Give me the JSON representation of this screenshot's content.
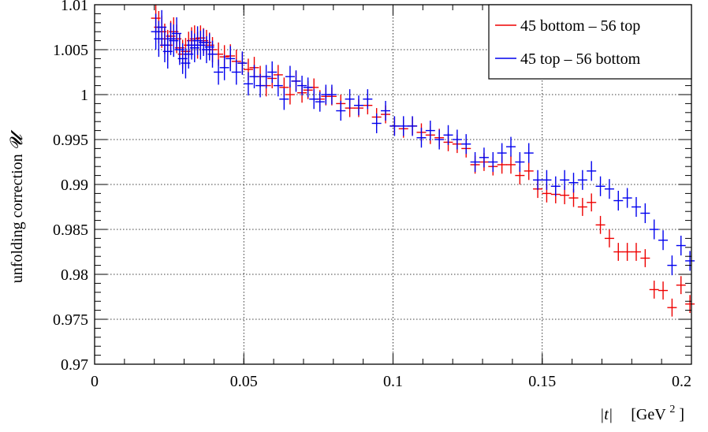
{
  "chart_data": {
    "type": "scatter",
    "xlabel_var": "|t|",
    "xlabel_unit": "[GeV",
    "xlabel_unit_sup": "2",
    "xlabel_unit_close": "]",
    "ylabel": "unfolding correction",
    "ylabel_symbol": "𝓤",
    "xlim": [
      0,
      0.2
    ],
    "ylim": [
      0.97,
      1.01
    ],
    "xticks": [
      0,
      0.05,
      0.1,
      0.15,
      0.2
    ],
    "xtick_labels": [
      "0",
      "0.05",
      "0.1",
      "0.15",
      "0.2"
    ],
    "yticks": [
      0.97,
      0.975,
      0.98,
      0.985,
      0.99,
      0.995,
      1.0,
      1.005,
      1.01
    ],
    "ytick_labels": [
      "0.97",
      "0.975",
      "0.98",
      "0.985",
      "0.99",
      "0.995",
      "1",
      "1.005",
      "1.01"
    ],
    "grid": true,
    "legend_position": "top-right",
    "series": [
      {
        "name": "45 bottom – 56 top",
        "color": "#ee0000",
        "points": [
          [
            0.0205,
            1.0085,
            0.0018
          ],
          [
            0.0215,
            1.0075,
            0.0018
          ],
          [
            0.0225,
            1.007,
            0.0018
          ],
          [
            0.0235,
            1.0062,
            0.0017
          ],
          [
            0.0245,
            1.0055,
            0.0017
          ],
          [
            0.0255,
            1.0065,
            0.0017
          ],
          [
            0.0265,
            1.007,
            0.0016
          ],
          [
            0.0275,
            1.0062,
            0.0016
          ],
          [
            0.0285,
            1.0052,
            0.0016
          ],
          [
            0.0295,
            1.0045,
            0.0016
          ],
          [
            0.0305,
            1.0048,
            0.0015
          ],
          [
            0.0315,
            1.0055,
            0.0015
          ],
          [
            0.0325,
            1.006,
            0.0015
          ],
          [
            0.0335,
            1.0062,
            0.0015
          ],
          [
            0.0345,
            1.0055,
            0.0015
          ],
          [
            0.0355,
            1.0063,
            0.0014
          ],
          [
            0.0365,
            1.006,
            0.0014
          ],
          [
            0.0375,
            1.0058,
            0.0014
          ],
          [
            0.0385,
            1.0055,
            0.0014
          ],
          [
            0.0395,
            1.005,
            0.0014
          ],
          [
            0.0415,
            1.0045,
            0.0013
          ],
          [
            0.0435,
            1.0042,
            0.0013
          ],
          [
            0.0455,
            1.0043,
            0.0013
          ],
          [
            0.0475,
            1.0037,
            0.0013
          ],
          [
            0.0495,
            1.0035,
            0.0012
          ],
          [
            0.0515,
            1.0028,
            0.0012
          ],
          [
            0.0535,
            1.003,
            0.0012
          ],
          [
            0.0555,
            1.002,
            0.0012
          ],
          [
            0.0575,
            1.001,
            0.0012
          ],
          [
            0.0595,
            1.0018,
            0.0011
          ],
          [
            0.0615,
            1.0022,
            0.0011
          ],
          [
            0.0635,
            1.0008,
            0.0011
          ],
          [
            0.0655,
            1.0,
            0.0011
          ],
          [
            0.0675,
            1.0015,
            0.0011
          ],
          [
            0.0695,
            1.0002,
            0.0011
          ],
          [
            0.0715,
            1.0005,
            0.001
          ],
          [
            0.0735,
            1.0008,
            0.001
          ],
          [
            0.0755,
            0.9995,
            0.001
          ],
          [
            0.0775,
            0.9998,
            0.001
          ],
          [
            0.0795,
            0.9998,
            0.001
          ],
          [
            0.0825,
            0.999,
            0.001
          ],
          [
            0.0855,
            0.9985,
            0.001
          ],
          [
            0.0885,
            0.9985,
            0.001
          ],
          [
            0.0915,
            0.9988,
            0.001
          ],
          [
            0.0945,
            0.9975,
            0.001
          ],
          [
            0.0975,
            0.9978,
            0.001
          ],
          [
            0.1005,
            0.9965,
            0.001
          ],
          [
            0.1035,
            0.9962,
            0.001
          ],
          [
            0.1065,
            0.9965,
            0.001
          ],
          [
            0.1095,
            0.9958,
            0.001
          ],
          [
            0.1125,
            0.9955,
            0.001
          ],
          [
            0.1155,
            0.9952,
            0.001
          ],
          [
            0.1185,
            0.9947,
            0.001
          ],
          [
            0.1215,
            0.9945,
            0.001
          ],
          [
            0.1245,
            0.994,
            0.001
          ],
          [
            0.1275,
            0.9922,
            0.001
          ],
          [
            0.1305,
            0.9925,
            0.001
          ],
          [
            0.1335,
            0.992,
            0.001
          ],
          [
            0.1365,
            0.9922,
            0.001
          ],
          [
            0.1395,
            0.9922,
            0.001
          ],
          [
            0.1425,
            0.991,
            0.001
          ],
          [
            0.1455,
            0.9915,
            0.001
          ],
          [
            0.1485,
            0.9895,
            0.001
          ],
          [
            0.1515,
            0.989,
            0.001
          ],
          [
            0.1545,
            0.9889,
            0.001
          ],
          [
            0.1575,
            0.9888,
            0.001
          ],
          [
            0.1605,
            0.9885,
            0.001
          ],
          [
            0.1635,
            0.9875,
            0.001
          ],
          [
            0.1665,
            0.988,
            0.001
          ],
          [
            0.1695,
            0.9855,
            0.001
          ],
          [
            0.1725,
            0.984,
            0.001
          ],
          [
            0.1755,
            0.9825,
            0.001
          ],
          [
            0.1785,
            0.9825,
            0.001
          ],
          [
            0.1815,
            0.9825,
            0.001
          ],
          [
            0.1845,
            0.9818,
            0.001
          ],
          [
            0.1875,
            0.9783,
            0.001
          ],
          [
            0.1905,
            0.9782,
            0.001
          ],
          [
            0.1935,
            0.9763,
            0.001
          ],
          [
            0.1965,
            0.9788,
            0.001
          ],
          [
            0.1995,
            0.9767,
            0.001
          ]
        ]
      },
      {
        "name": "45 top – 56 bottom",
        "color": "#0000ee",
        "points": [
          [
            0.0205,
            1.007,
            0.002
          ],
          [
            0.0215,
            1.0062,
            0.002
          ],
          [
            0.0225,
            1.0075,
            0.0019
          ],
          [
            0.0235,
            1.0055,
            0.0019
          ],
          [
            0.0245,
            1.0048,
            0.0019
          ],
          [
            0.0255,
            1.0062,
            0.0018
          ],
          [
            0.0265,
            1.006,
            0.0018
          ],
          [
            0.0275,
            1.0068,
            0.0018
          ],
          [
            0.0285,
            1.005,
            0.0017
          ],
          [
            0.0295,
            1.004,
            0.0017
          ],
          [
            0.0305,
            1.0035,
            0.0017
          ],
          [
            0.0315,
            1.0045,
            0.0016
          ],
          [
            0.0325,
            1.0055,
            0.0016
          ],
          [
            0.0335,
            1.0052,
            0.0016
          ],
          [
            0.0345,
            1.006,
            0.0016
          ],
          [
            0.0355,
            1.0055,
            0.0016
          ],
          [
            0.0365,
            1.0058,
            0.0015
          ],
          [
            0.0375,
            1.005,
            0.0015
          ],
          [
            0.0385,
            1.0053,
            0.0015
          ],
          [
            0.0395,
            1.0045,
            0.0015
          ],
          [
            0.0415,
            1.0025,
            0.0014
          ],
          [
            0.0435,
            1.003,
            0.0014
          ],
          [
            0.0455,
            1.004,
            0.0014
          ],
          [
            0.0475,
            1.0025,
            0.0014
          ],
          [
            0.0495,
            1.0035,
            0.0013
          ],
          [
            0.0515,
            1.0012,
            0.0013
          ],
          [
            0.0535,
            1.002,
            0.0013
          ],
          [
            0.0555,
            1.001,
            0.0013
          ],
          [
            0.0575,
            1.002,
            0.0013
          ],
          [
            0.0595,
            1.0025,
            0.0012
          ],
          [
            0.0615,
            1.001,
            0.0012
          ],
          [
            0.0635,
            0.9995,
            0.0012
          ],
          [
            0.0655,
            1.002,
            0.0012
          ],
          [
            0.0675,
            1.0015,
            0.0012
          ],
          [
            0.0695,
            1.001,
            0.0011
          ],
          [
            0.0715,
            1.0008,
            0.0011
          ],
          [
            0.0735,
            0.9995,
            0.0011
          ],
          [
            0.0755,
            0.9992,
            0.0011
          ],
          [
            0.0775,
            1.0,
            0.0011
          ],
          [
            0.0795,
            1.0,
            0.0011
          ],
          [
            0.0825,
            0.9982,
            0.0011
          ],
          [
            0.0855,
            0.9995,
            0.0011
          ],
          [
            0.0885,
            0.9988,
            0.0011
          ],
          [
            0.0915,
            0.9995,
            0.0011
          ],
          [
            0.0945,
            0.9968,
            0.0011
          ],
          [
            0.0975,
            0.9982,
            0.0011
          ],
          [
            0.1005,
            0.9965,
            0.0011
          ],
          [
            0.1035,
            0.9965,
            0.0011
          ],
          [
            0.1065,
            0.9965,
            0.0011
          ],
          [
            0.1095,
            0.9952,
            0.0011
          ],
          [
            0.1125,
            0.996,
            0.0011
          ],
          [
            0.1155,
            0.995,
            0.0011
          ],
          [
            0.1185,
            0.9955,
            0.0011
          ],
          [
            0.1215,
            0.995,
            0.0011
          ],
          [
            0.1245,
            0.9945,
            0.0011
          ],
          [
            0.1275,
            0.9925,
            0.0011
          ],
          [
            0.1305,
            0.993,
            0.0011
          ],
          [
            0.1335,
            0.9925,
            0.0011
          ],
          [
            0.1365,
            0.9935,
            0.0011
          ],
          [
            0.1395,
            0.9942,
            0.0011
          ],
          [
            0.1425,
            0.9925,
            0.0011
          ],
          [
            0.1455,
            0.9935,
            0.0011
          ],
          [
            0.1485,
            0.9905,
            0.0011
          ],
          [
            0.1515,
            0.9905,
            0.0011
          ],
          [
            0.1545,
            0.9898,
            0.0011
          ],
          [
            0.1575,
            0.9905,
            0.0011
          ],
          [
            0.1605,
            0.9902,
            0.0011
          ],
          [
            0.1635,
            0.9905,
            0.0011
          ],
          [
            0.1665,
            0.9915,
            0.0011
          ],
          [
            0.1695,
            0.9898,
            0.0011
          ],
          [
            0.1725,
            0.9895,
            0.0011
          ],
          [
            0.1755,
            0.9882,
            0.0011
          ],
          [
            0.1785,
            0.9885,
            0.0011
          ],
          [
            0.1815,
            0.9875,
            0.0011
          ],
          [
            0.1845,
            0.9868,
            0.0011
          ],
          [
            0.1875,
            0.985,
            0.0011
          ],
          [
            0.1905,
            0.9838,
            0.0011
          ],
          [
            0.1935,
            0.981,
            0.0011
          ],
          [
            0.1965,
            0.9832,
            0.0011
          ],
          [
            0.1995,
            0.9815,
            0.0011
          ]
        ]
      }
    ]
  }
}
